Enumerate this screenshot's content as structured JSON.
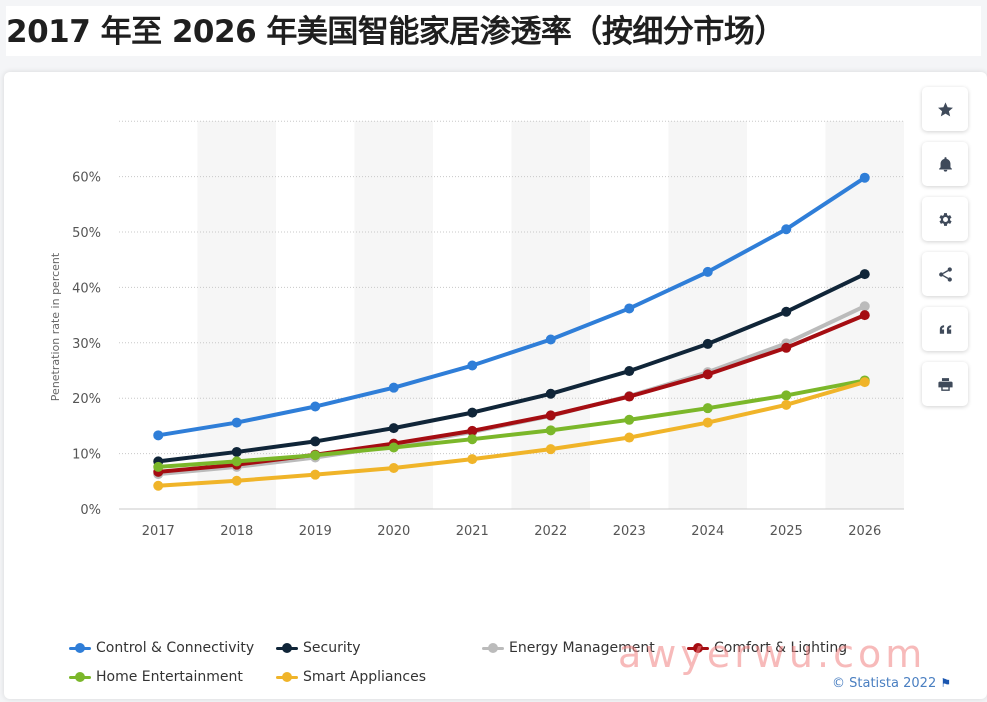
{
  "title": "2017 年至 2026 年美国智能家居渗透率（按细分市场）",
  "chart_data": {
    "type": "line",
    "categories": [
      "2017",
      "2018",
      "2019",
      "2020",
      "2021",
      "2022",
      "2023",
      "2024",
      "2025",
      "2026"
    ],
    "ylabel": "Penetration rate in percent",
    "xlabel": "",
    "ylim": [
      0,
      70
    ],
    "yticks": [
      0,
      10,
      20,
      30,
      40,
      50,
      60
    ],
    "ytick_labels": [
      "0%",
      "10%",
      "20%",
      "30%",
      "40%",
      "50%",
      "60%"
    ],
    "grid": true,
    "legend_position": "bottom",
    "series": [
      {
        "name": "Control & Connectivity",
        "color": "#2f7ed8",
        "values": [
          13.3,
          15.6,
          18.5,
          21.9,
          25.9,
          30.6,
          36.2,
          42.8,
          50.5,
          59.8
        ]
      },
      {
        "name": "Security",
        "color": "#102538",
        "values": [
          8.6,
          10.3,
          12.2,
          14.6,
          17.4,
          20.8,
          24.9,
          29.8,
          35.6,
          42.4
        ]
      },
      {
        "name": "Energy Management",
        "color": "#bbbbbb",
        "values": [
          6.3,
          7.6,
          9.3,
          11.4,
          13.9,
          16.8,
          20.4,
          24.7,
          29.9,
          36.6
        ]
      },
      {
        "name": "Comfort & Lighting",
        "color": "#a50d12",
        "values": [
          6.7,
          8.0,
          9.8,
          11.8,
          14.1,
          16.9,
          20.3,
          24.3,
          29.1,
          35.0
        ]
      },
      {
        "name": "Home Entertainment",
        "color": "#7bb72a",
        "values": [
          7.6,
          8.6,
          9.7,
          11.1,
          12.6,
          14.2,
          16.1,
          18.2,
          20.5,
          23.2
        ]
      },
      {
        "name": "Smart Appliances",
        "color": "#f0b429",
        "values": [
          4.2,
          5.1,
          6.2,
          7.4,
          9.0,
          10.8,
          12.9,
          15.6,
          18.8,
          22.9
        ]
      }
    ]
  },
  "legend": [
    {
      "label": "Control & Connectivity",
      "color": "#2f7ed8"
    },
    {
      "label": "Security",
      "color": "#102538"
    },
    {
      "label": "Energy Management",
      "color": "#bbbbbb"
    },
    {
      "label": "Comfort & Lighting",
      "color": "#a50d12"
    },
    {
      "label": "Home Entertainment",
      "color": "#7bb72a"
    },
    {
      "label": "Smart Appliances",
      "color": "#f0b429"
    }
  ],
  "toolbar": [
    {
      "icon": "star-icon",
      "name": "favorite-button"
    },
    {
      "icon": "bell-icon",
      "name": "notification-button"
    },
    {
      "icon": "gear-icon",
      "name": "settings-button"
    },
    {
      "icon": "share-icon",
      "name": "share-button"
    },
    {
      "icon": "quote-icon",
      "name": "cite-button"
    },
    {
      "icon": "print-icon",
      "name": "print-button"
    }
  ],
  "watermark": "awyerwu.com",
  "credit": "© Statista 2022",
  "credit_flag": "⚑"
}
